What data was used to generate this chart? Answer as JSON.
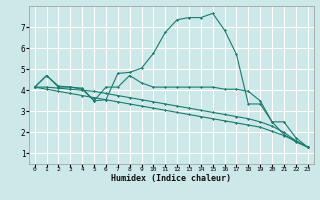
{
  "xlabel": "Humidex (Indice chaleur)",
  "bg_color": "#cde8e8",
  "grid_color": "#ffffff",
  "line_color": "#1a7a6e",
  "xlim": [
    -0.5,
    23.5
  ],
  "ylim": [
    0.5,
    8.0
  ],
  "xticks": [
    0,
    1,
    2,
    3,
    4,
    5,
    6,
    7,
    8,
    9,
    10,
    11,
    12,
    13,
    14,
    15,
    16,
    17,
    18,
    19,
    20,
    21,
    22,
    23
  ],
  "yticks": [
    1,
    2,
    3,
    4,
    5,
    6,
    7
  ],
  "lines": [
    {
      "x": [
        0,
        1,
        2,
        3,
        4,
        5,
        6,
        7,
        8,
        9,
        10,
        11,
        12,
        13,
        14,
        15,
        16,
        17,
        18,
        19,
        20,
        21,
        22,
        23
      ],
      "y": [
        4.15,
        4.7,
        4.2,
        4.15,
        4.1,
        3.5,
        3.55,
        4.8,
        4.85,
        5.05,
        5.75,
        6.75,
        7.35,
        7.45,
        7.45,
        7.65,
        6.85,
        5.7,
        3.35,
        3.35,
        2.5,
        1.9,
        1.55,
        1.3
      ]
    },
    {
      "x": [
        0,
        1,
        2,
        3,
        4,
        5,
        6,
        7,
        8,
        9,
        10,
        11,
        12,
        13,
        14,
        15,
        16,
        17,
        18,
        19,
        20,
        21,
        22,
        23
      ],
      "y": [
        4.15,
        4.7,
        4.15,
        4.15,
        4.05,
        3.5,
        4.15,
        4.15,
        4.7,
        4.35,
        4.15,
        4.15,
        4.15,
        4.15,
        4.15,
        4.15,
        4.05,
        4.05,
        3.95,
        3.5,
        2.5,
        2.5,
        1.75,
        1.3
      ]
    },
    {
      "x": [
        0,
        1,
        2,
        3,
        4,
        5,
        6,
        7,
        8,
        9,
        10,
        11,
        12,
        13,
        14,
        15,
        16,
        17,
        18,
        19,
        20,
        21,
        22,
        23
      ],
      "y": [
        4.15,
        4.15,
        4.1,
        4.05,
        4.0,
        3.95,
        3.85,
        3.75,
        3.65,
        3.55,
        3.45,
        3.35,
        3.25,
        3.15,
        3.05,
        2.95,
        2.85,
        2.75,
        2.65,
        2.5,
        2.3,
        2.0,
        1.6,
        1.3
      ]
    },
    {
      "x": [
        0,
        1,
        2,
        3,
        4,
        5,
        6,
        7,
        8,
        9,
        10,
        11,
        12,
        13,
        14,
        15,
        16,
        17,
        18,
        19,
        20,
        21,
        22,
        23
      ],
      "y": [
        4.15,
        4.05,
        3.95,
        3.85,
        3.75,
        3.65,
        3.55,
        3.45,
        3.35,
        3.25,
        3.15,
        3.05,
        2.95,
        2.85,
        2.75,
        2.65,
        2.55,
        2.45,
        2.35,
        2.25,
        2.05,
        1.85,
        1.6,
        1.3
      ]
    }
  ]
}
